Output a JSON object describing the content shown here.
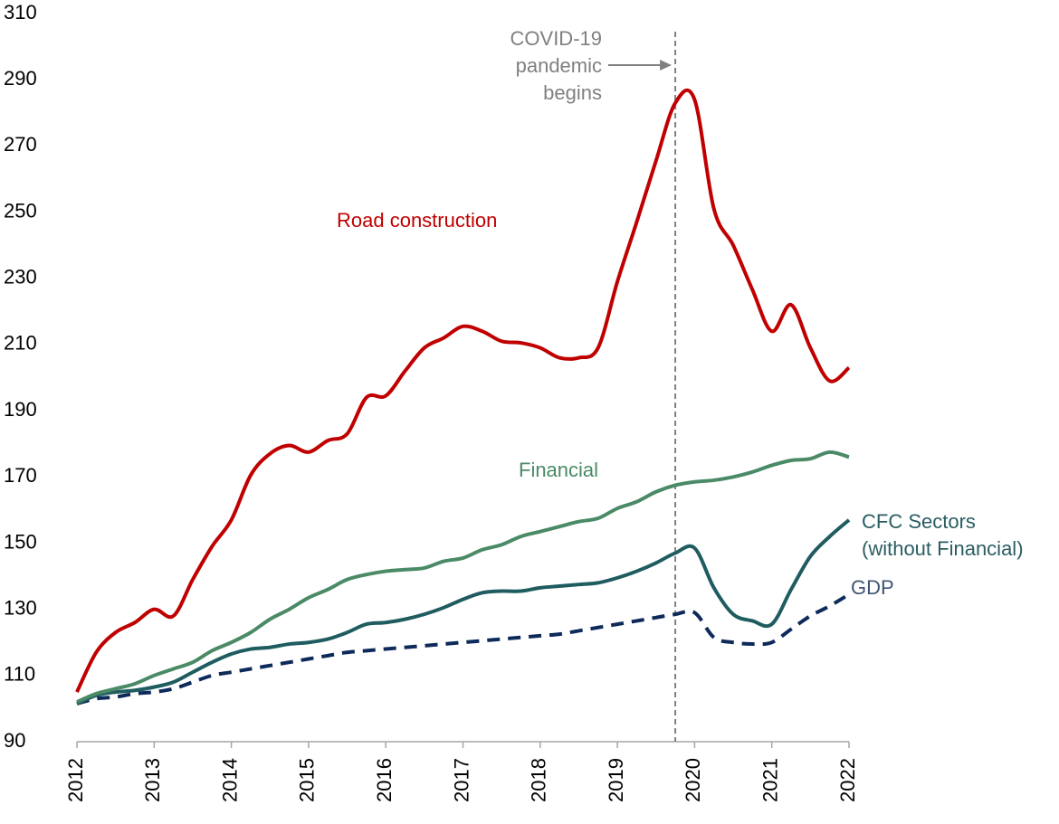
{
  "chart_data": {
    "type": "line",
    "annotation": {
      "text": "COVID-19 pandemic begins",
      "x": 2019.75
    },
    "x": [
      2012,
      2012.25,
      2012.5,
      2012.75,
      2013,
      2013.25,
      2013.5,
      2013.75,
      2014,
      2014.25,
      2014.5,
      2014.75,
      2015,
      2015.25,
      2015.5,
      2015.75,
      2016,
      2016.25,
      2016.5,
      2016.75,
      2017,
      2017.25,
      2017.5,
      2017.75,
      2018,
      2018.25,
      2018.5,
      2018.75,
      2019,
      2019.25,
      2019.5,
      2019.75,
      2020,
      2020.25,
      2020.5,
      2020.75,
      2021,
      2021.25,
      2021.5,
      2021.75,
      2022
    ],
    "series": [
      {
        "name": "Road construction",
        "color": "#c00000",
        "dashed": false,
        "values": [
          105,
          117,
          123,
          126,
          130,
          128,
          139,
          149,
          157,
          170.5,
          177,
          179.5,
          177.5,
          181,
          183,
          194,
          194.5,
          202,
          209,
          212,
          215.5,
          214,
          211,
          210.5,
          209,
          206,
          206,
          209,
          229,
          247,
          265.5,
          283,
          284,
          251,
          240,
          226.5,
          214,
          222,
          209,
          199,
          203
        ]
      },
      {
        "name": "Financial",
        "color": "#4a8a66",
        "dashed": false,
        "values": [
          102,
          104.5,
          106,
          107.5,
          110,
          112,
          114,
          117.5,
          120,
          123,
          127,
          130,
          133.5,
          136,
          139,
          140.5,
          141.5,
          142,
          142.5,
          144.5,
          145.5,
          148,
          149.5,
          152,
          153.5,
          155,
          156.5,
          157.5,
          160.5,
          162.5,
          165.5,
          167.5,
          168.5,
          169,
          170,
          171.5,
          173.5,
          175,
          175.5,
          177.5,
          176
        ]
      },
      {
        "name": "CFC Sectors (without Financial)",
        "color": "#1f5c60",
        "dashed": false,
        "values": [
          101.5,
          104,
          105,
          105.5,
          106.5,
          108,
          111,
          114,
          116.5,
          118,
          118.5,
          119.5,
          120,
          121,
          123,
          125.5,
          126,
          127,
          128.5,
          130.5,
          133,
          135,
          135.5,
          135.5,
          136.5,
          137,
          137.5,
          138,
          139.5,
          141.5,
          144,
          147,
          148.5,
          136.5,
          128.5,
          126.5,
          125.5,
          136,
          146,
          152,
          157
        ]
      },
      {
        "name": "GDP",
        "color": "#0d2a5a",
        "dashed": true,
        "values": [
          101.5,
          103,
          103.5,
          104.5,
          105,
          106,
          108,
          110,
          111,
          112,
          113,
          114,
          115,
          116,
          117,
          117.5,
          118,
          118.5,
          119,
          119.5,
          120,
          120.5,
          121,
          121.5,
          122,
          122.5,
          123.5,
          124.5,
          125.5,
          126.5,
          127.5,
          128.5,
          129,
          121.5,
          120,
          119.5,
          120,
          124,
          128,
          131,
          134.5
        ]
      }
    ],
    "xlim": [
      2012,
      2022
    ],
    "xticks": [
      2012,
      2013,
      2014,
      2015,
      2016,
      2017,
      2018,
      2019,
      2020,
      2021,
      2022
    ],
    "ylim": [
      90,
      310
    ],
    "yticks": [
      90,
      110,
      130,
      150,
      170,
      190,
      210,
      230,
      250,
      270,
      290,
      310
    ],
    "grid": false
  }
}
